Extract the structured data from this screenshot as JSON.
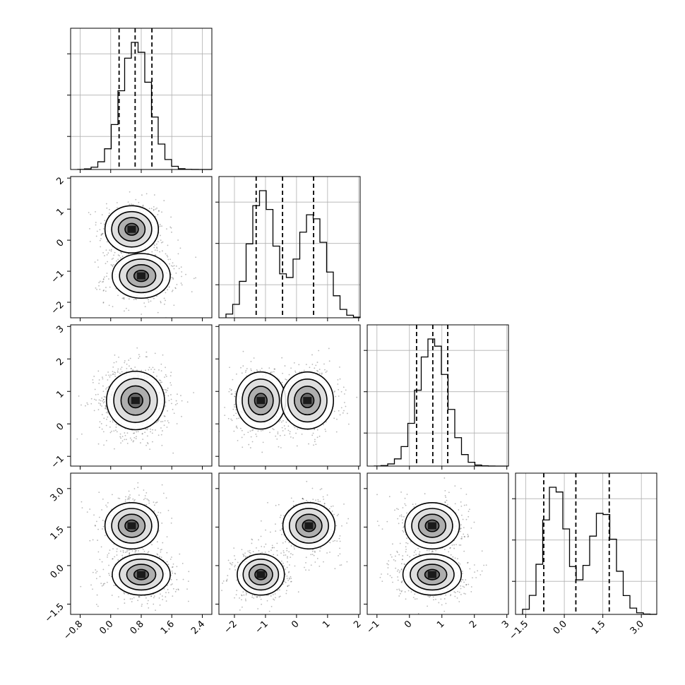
{
  "chart_data": {
    "type": "corner",
    "grid": true,
    "colors": {
      "ink": "#000000",
      "gridline": "#b0b0b0",
      "background": "#ffffff"
    },
    "dimensions": [
      {
        "range": [
          -1.05,
          2.65
        ],
        "ticks": [
          -0.8,
          0.0,
          0.8,
          1.6,
          2.4
        ],
        "tick_labels": [
          "−0.8",
          "0.0",
          "0.8",
          "1.6",
          "2.4"
        ],
        "quantiles": [
          0.22,
          0.64,
          1.08
        ],
        "mixture": [
          {
            "w": 1.0,
            "mu": 0.65,
            "sd": 0.38
          }
        ]
      },
      {
        "range": [
          -2.5,
          2.05
        ],
        "ticks": [
          -2,
          -1,
          0,
          1,
          2
        ],
        "tick_labels": [
          "−2",
          "−1",
          "0",
          "1",
          "2"
        ],
        "quantiles": [
          -1.3,
          -0.45,
          0.55
        ],
        "mixture": [
          {
            "w": 0.52,
            "mu": -1.1,
            "sd": 0.4
          },
          {
            "w": 0.48,
            "mu": 0.5,
            "sd": 0.45
          }
        ]
      },
      {
        "range": [
          -1.3,
          3.05
        ],
        "ticks": [
          -1,
          0,
          1,
          2,
          3
        ],
        "tick_labels": [
          "−1",
          "0",
          "1",
          "2",
          "3"
        ],
        "quantiles": [
          0.22,
          0.72,
          1.18
        ],
        "mixture": [
          {
            "w": 1.0,
            "mu": 0.72,
            "sd": 0.45
          }
        ]
      },
      {
        "range": [
          -1.9,
          3.6
        ],
        "ticks": [
          -1.5,
          0.0,
          1.5,
          3.0
        ],
        "tick_labels": [
          "−1.5",
          "0.0",
          "1.5",
          "3.0"
        ],
        "quantiles": [
          -0.8,
          0.45,
          1.75
        ],
        "mixture": [
          {
            "w": 0.53,
            "mu": -0.35,
            "sd": 0.45
          },
          {
            "w": 0.47,
            "mu": 1.5,
            "sd": 0.5
          }
        ]
      }
    ],
    "pairs": [
      {
        "row": 1,
        "col": 0,
        "clusters": [
          {
            "mx": 0.55,
            "my": 0.35,
            "sx": 0.35,
            "sy": 0.38,
            "w": 0.45
          },
          {
            "mx": 0.8,
            "my": -1.15,
            "sx": 0.38,
            "sy": 0.36,
            "w": 0.55
          }
        ]
      },
      {
        "row": 2,
        "col": 0,
        "clusters": [
          {
            "mx": 0.65,
            "my": 0.72,
            "sx": 0.38,
            "sy": 0.45,
            "w": 1.0
          }
        ]
      },
      {
        "row": 2,
        "col": 1,
        "clusters": [
          {
            "mx": -1.15,
            "my": 0.72,
            "sx": 0.4,
            "sy": 0.44,
            "w": 0.52
          },
          {
            "mx": 0.35,
            "my": 0.72,
            "sx": 0.42,
            "sy": 0.44,
            "w": 0.48
          }
        ]
      },
      {
        "row": 3,
        "col": 0,
        "clusters": [
          {
            "mx": 0.55,
            "my": 1.55,
            "sx": 0.35,
            "sy": 0.45,
            "w": 0.45
          },
          {
            "mx": 0.8,
            "my": -0.35,
            "sx": 0.38,
            "sy": 0.4,
            "w": 0.55
          }
        ]
      },
      {
        "row": 3,
        "col": 1,
        "clusters": [
          {
            "mx": -1.15,
            "my": -0.35,
            "sx": 0.38,
            "sy": 0.4,
            "w": 0.53
          },
          {
            "mx": 0.4,
            "my": 1.55,
            "sx": 0.42,
            "sy": 0.45,
            "w": 0.47
          }
        ]
      },
      {
        "row": 3,
        "col": 2,
        "clusters": [
          {
            "mx": 0.7,
            "my": 1.55,
            "sx": 0.42,
            "sy": 0.45,
            "w": 0.45
          },
          {
            "mx": 0.7,
            "my": -0.35,
            "sx": 0.45,
            "sy": 0.4,
            "w": 0.55
          }
        ]
      }
    ]
  }
}
